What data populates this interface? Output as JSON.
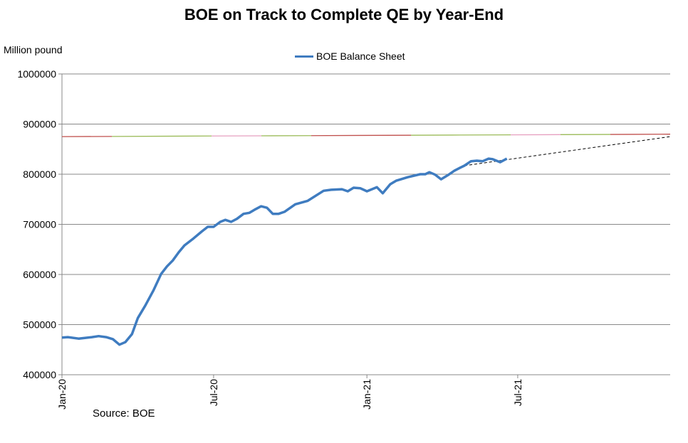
{
  "chart_data": {
    "type": "line",
    "title": "BOE on Track to Complete QE by Year-End",
    "ylabel": "Million pound",
    "xlabel": "",
    "annotation": "Source: BOE",
    "legend_position": "top-center",
    "grid": true,
    "ylim": [
      400000,
      1000000
    ],
    "xlim": [
      "2020-01-01",
      "2021-12-31"
    ],
    "y_ticks": [
      "400000",
      "500000",
      "600000",
      "700000",
      "800000",
      "900000",
      "1000000"
    ],
    "x_ticks": [
      {
        "label": "Jan-20",
        "date": "2020-01-01"
      },
      {
        "label": "Jul-20",
        "date": "2020-07-01"
      },
      {
        "label": "Jan-21",
        "date": "2021-01-01"
      },
      {
        "label": "Jul-21",
        "date": "2021-07-01"
      }
    ],
    "series": [
      {
        "name": "BOE Balance Sheet",
        "color": "#3f7cc0",
        "x": [
          "2020-01-01",
          "2020-01-08",
          "2020-01-21",
          "2020-02-06",
          "2020-02-14",
          "2020-02-23",
          "2020-03-02",
          "2020-03-10",
          "2020-03-17",
          "2020-03-25",
          "2020-04-01",
          "2020-04-10",
          "2020-04-20",
          "2020-04-29",
          "2020-05-06",
          "2020-05-13",
          "2020-05-20",
          "2020-05-27",
          "2020-06-07",
          "2020-06-17",
          "2020-06-24",
          "2020-07-01",
          "2020-07-09",
          "2020-07-15",
          "2020-07-22",
          "2020-07-29",
          "2020-08-06",
          "2020-08-13",
          "2020-08-19",
          "2020-08-27",
          "2020-09-03",
          "2020-09-10",
          "2020-09-17",
          "2020-09-24",
          "2020-10-07",
          "2020-10-22",
          "2020-11-10",
          "2020-11-19",
          "2020-12-02",
          "2020-12-09",
          "2020-12-16",
          "2020-12-24",
          "2021-01-01",
          "2021-01-13",
          "2021-01-20",
          "2021-01-29",
          "2021-02-05",
          "2021-02-19",
          "2021-03-06",
          "2021-03-12",
          "2021-03-17",
          "2021-03-24",
          "2021-03-31",
          "2021-04-09",
          "2021-04-16",
          "2021-04-23",
          "2021-04-28",
          "2021-05-06",
          "2021-05-13",
          "2021-05-20",
          "2021-05-27",
          "2021-06-01",
          "2021-06-10",
          "2021-06-18"
        ],
        "values": [
          474000,
          475000,
          472000,
          475000,
          477000,
          475000,
          471000,
          460000,
          465000,
          481000,
          513000,
          538000,
          569000,
          601000,
          616000,
          628000,
          644000,
          658000,
          672000,
          686000,
          695000,
          695000,
          705000,
          709000,
          705000,
          711000,
          721000,
          723000,
          729000,
          736000,
          733000,
          721000,
          721000,
          725000,
          740000,
          747000,
          767000,
          769000,
          770000,
          766000,
          773000,
          772000,
          766000,
          774000,
          762000,
          780000,
          787000,
          794000,
          800000,
          800000,
          804000,
          799000,
          790000,
          799000,
          807000,
          813000,
          817000,
          826000,
          827000,
          826000,
          831000,
          830000,
          824000,
          831000
        ]
      }
    ],
    "trend_line": {
      "style": "dashed",
      "color": "#000000",
      "x": [
        "2021-04-28",
        "2021-12-31"
      ],
      "values": [
        817000,
        875000
      ]
    },
    "target_line": {
      "value": 875000,
      "colors": [
        "#c0504d",
        "#9bbb59",
        "#e6a0c0"
      ]
    }
  }
}
